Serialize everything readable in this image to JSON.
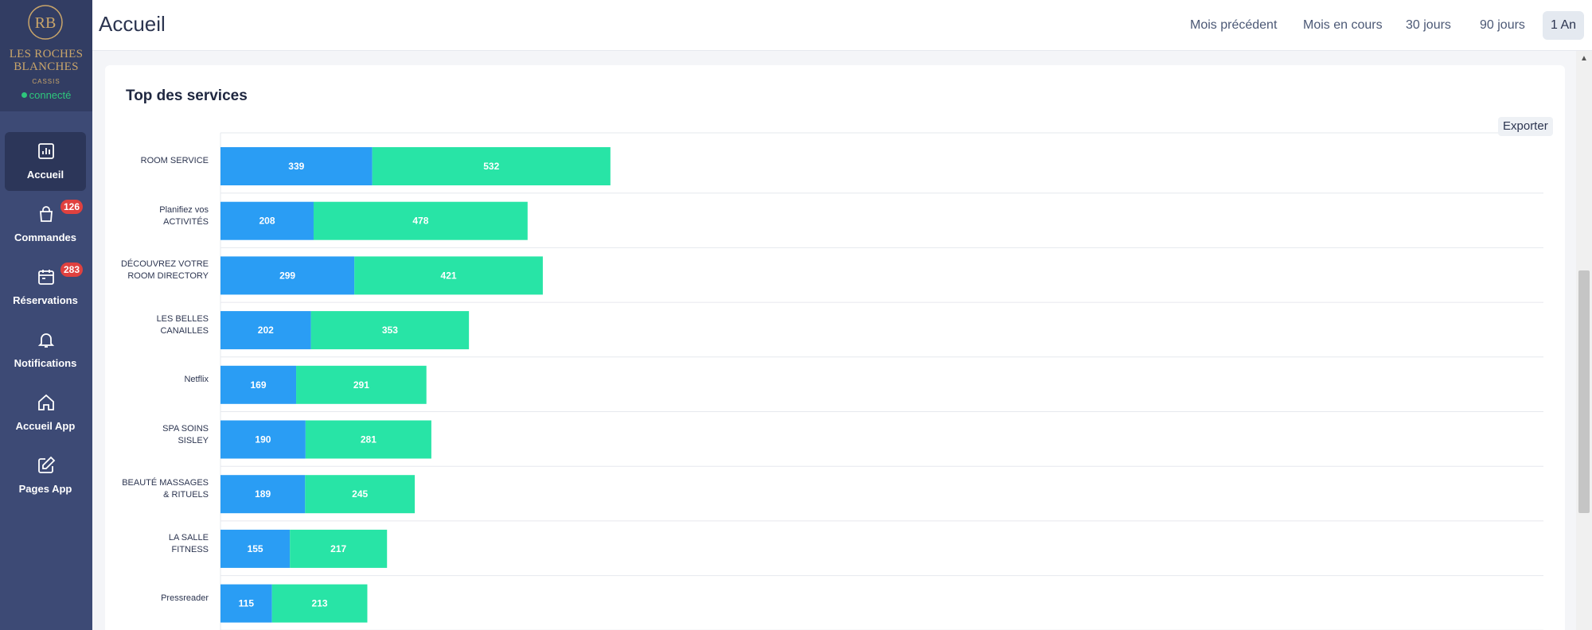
{
  "brand": {
    "name_line1": "LES ROCHES",
    "name_line2": "BLANCHES",
    "sub": "CASSIS",
    "status": "connecté"
  },
  "sidebar": {
    "items": [
      {
        "label": "Accueil",
        "icon": "bar-chart-icon",
        "badge": ""
      },
      {
        "label": "Commandes",
        "icon": "shopping-bag-icon",
        "badge": "126"
      },
      {
        "label": "Réservations",
        "icon": "calendar-icon",
        "badge": "283"
      },
      {
        "label": "Notifications",
        "icon": "bell-icon",
        "badge": ""
      },
      {
        "label": "Accueil App",
        "icon": "home-icon",
        "badge": ""
      },
      {
        "label": "Pages App",
        "icon": "edit-icon",
        "badge": ""
      }
    ]
  },
  "header": {
    "title": "Accueil",
    "periods": [
      "Mois précédent",
      "Mois en cours",
      "30 jours",
      "90 jours",
      "1 An"
    ],
    "active_period": "1 An"
  },
  "card": {
    "title": "Top des services",
    "export_label": "Exporter"
  },
  "colors": {
    "series1": "#2a9df4",
    "series2": "#28e4a6",
    "sidebar": "#3d4a75",
    "badge": "#e0413f"
  },
  "chart_data": {
    "type": "bar",
    "orientation": "horizontal",
    "stacked": true,
    "categories": [
      [
        "ROOM SERVICE"
      ],
      [
        "Planifiez vos",
        "ACTIVITÉS"
      ],
      [
        "DÉCOUVREZ VOTRE",
        "ROOM DIRECTORY"
      ],
      [
        "LES BELLES",
        "CANAILLES"
      ],
      [
        "Netflix"
      ],
      [
        "SPA SOINS",
        "SISLEY"
      ],
      [
        "BEAUTÉ MASSAGES",
        "& RITUELS"
      ],
      [
        "LA SALLE",
        "FITNESS"
      ],
      [
        "Pressreader"
      ]
    ],
    "series": [
      {
        "values": [
          339,
          208,
          299,
          202,
          169,
          190,
          189,
          155,
          115
        ]
      },
      {
        "values": [
          532,
          478,
          421,
          353,
          291,
          281,
          245,
          217,
          213
        ]
      }
    ],
    "xlim": [
      0,
      1000
    ],
    "data_labels": true,
    "grid": true
  }
}
